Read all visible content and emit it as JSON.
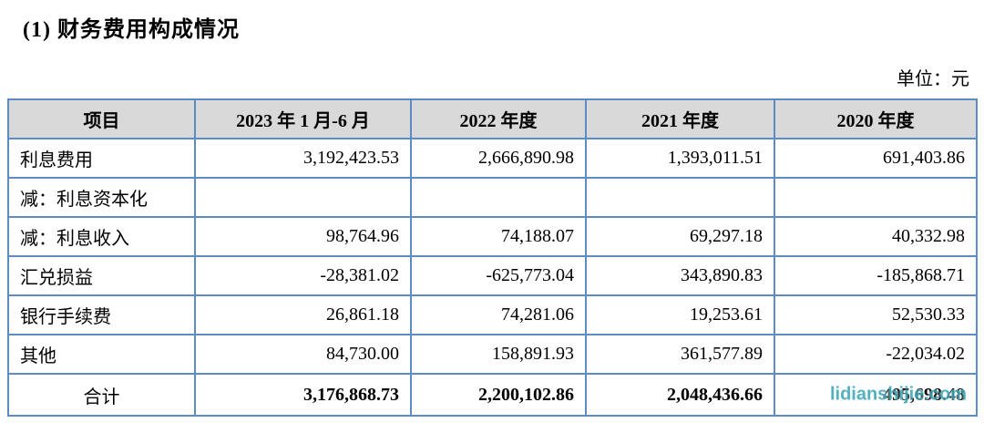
{
  "page": {
    "title": "(1) 财务费用构成情况",
    "unit_label": "单位：元"
  },
  "table": {
    "columns": [
      "项目",
      "2023 年 1 月-6 月",
      "2022 年度",
      "2021 年度",
      "2020 年度"
    ],
    "rows": [
      {
        "label": "利息费用",
        "values": [
          "3,192,423.53",
          "2,666,890.98",
          "1,393,011.51",
          "691,403.86"
        ]
      },
      {
        "label": "减：利息资本化",
        "values": [
          "",
          "",
          "",
          ""
        ]
      },
      {
        "label": "减：利息收入",
        "values": [
          "98,764.96",
          "74,188.07",
          "69,297.18",
          "40,332.98"
        ]
      },
      {
        "label": "汇兑损益",
        "values": [
          "-28,381.02",
          "-625,773.04",
          "343,890.83",
          "-185,868.71"
        ]
      },
      {
        "label": "银行手续费",
        "values": [
          "26,861.18",
          "74,281.06",
          "19,253.61",
          "52,530.33"
        ]
      },
      {
        "label": "其他",
        "values": [
          "84,730.00",
          "158,891.93",
          "361,577.89",
          "-22,034.02"
        ]
      }
    ],
    "total_row": {
      "label": "合计",
      "values": [
        "3,176,868.73",
        "2,200,102.86",
        "2,048,436.66",
        "495,698.48"
      ]
    }
  },
  "watermark": {
    "text": "lidianshijie.com"
  },
  "colors": {
    "border": "#5b8dc4",
    "header_bg": "#d9d9d9",
    "watermark": "#3aa7b8",
    "text": "#000000"
  }
}
